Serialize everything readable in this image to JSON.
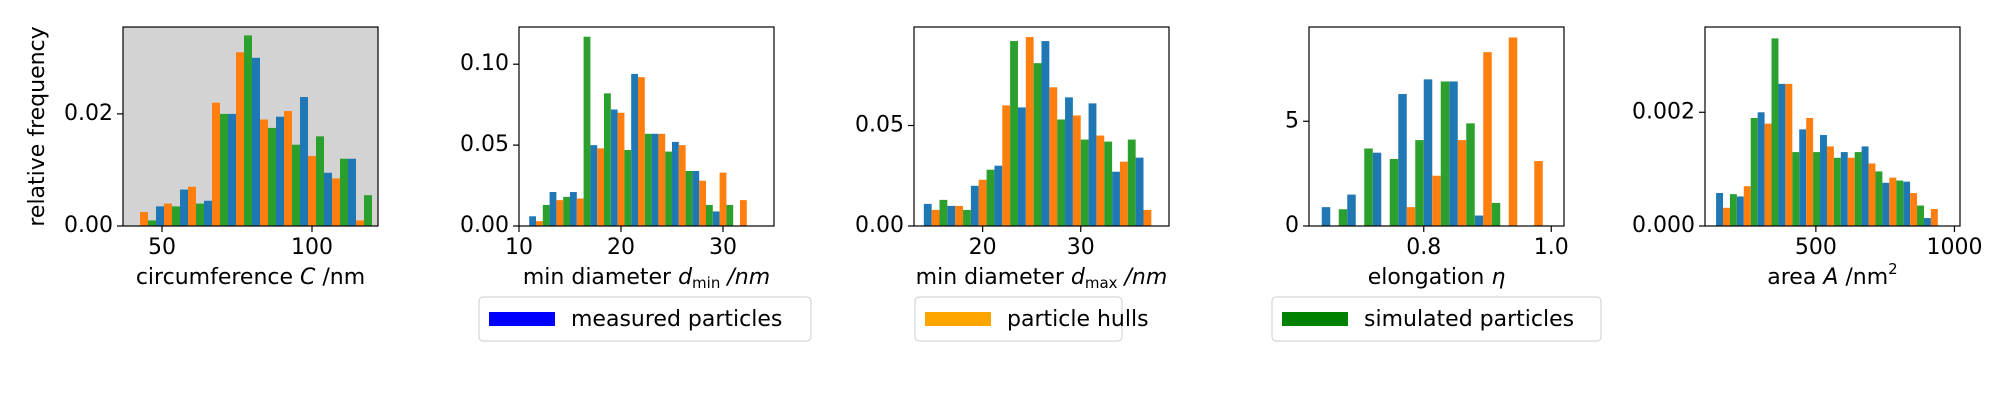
{
  "chart_data": [
    {
      "type": "histogram",
      "background": "#d3d3d3",
      "ylabel": "relative frequency",
      "xlabel": [
        {
          "text": "circumference "
        },
        {
          "text": "C",
          "style": "italic"
        },
        {
          "text": " /nm"
        }
      ],
      "bins": [
        40,
        48,
        56,
        64,
        72,
        80,
        88,
        96,
        104,
        112,
        120
      ],
      "series": [
        {
          "color": "#1f77b4",
          "values": [
            0,
            0.0035,
            0.0065,
            0.0045,
            0.02,
            0.03,
            0.0195,
            0.023,
            0.0095,
            0.012
          ]
        },
        {
          "color": "#ff7f0e",
          "values": [
            0.0025,
            0.004,
            0.007,
            0.022,
            0.031,
            0.019,
            0.0205,
            0.0125,
            0.0085,
            0.001
          ]
        },
        {
          "color": "#2ca02c",
          "values": [
            0.001,
            0.0035,
            0.004,
            0.02,
            0.034,
            0.0175,
            0.0145,
            0.016,
            0.012,
            0.0055
          ]
        }
      ],
      "xlim": [
        37,
        122
      ],
      "xticks": [
        50,
        100
      ],
      "ylim": [
        0,
        0.0355
      ],
      "yticks": [
        {
          "value": 0,
          "label": "0.00"
        },
        {
          "value": 0.02,
          "label": "0.02"
        }
      ]
    },
    {
      "type": "histogram",
      "background": "#ffffff",
      "xlabel": [
        {
          "text": "min diameter "
        },
        {
          "text": "d",
          "style": "italic"
        },
        {
          "text": "min",
          "style": "sub"
        },
        {
          "text": " /nm",
          "style": "italic"
        }
      ],
      "bins": [
        11,
        13,
        15,
        17,
        19,
        21,
        23,
        25,
        27,
        29,
        31,
        33
      ],
      "series": [
        {
          "color": "#1f77b4",
          "values": [
            0.006,
            0.021,
            0.021,
            0.05,
            0.072,
            0.094,
            0.057,
            0.052,
            0.034,
            0.009,
            0
          ]
        },
        {
          "color": "#ff7f0e",
          "values": [
            0.003,
            0.016,
            0.017,
            0.048,
            0.07,
            0.092,
            0.057,
            0.05,
            0.028,
            0.033,
            0.016
          ]
        },
        {
          "color": "#2ca02c",
          "values": [
            0.013,
            0.018,
            0.117,
            0.082,
            0.047,
            0.057,
            0.046,
            0.034,
            0.013,
            0.013,
            0
          ]
        }
      ],
      "xlim": [
        10,
        35
      ],
      "xticks": [
        10,
        20,
        30
      ],
      "ylim": [
        0,
        0.123
      ],
      "yticks": [
        {
          "value": 0,
          "label": "0.00"
        },
        {
          "value": 0.05,
          "label": "0.05"
        },
        {
          "value": 0.1,
          "label": "0.10"
        }
      ]
    },
    {
      "type": "histogram",
      "background": "#ffffff",
      "xlabel": [
        {
          "text": "min diameter "
        },
        {
          "text": "d",
          "style": "italic"
        },
        {
          "text": "max",
          "style": "sub"
        },
        {
          "text": " /nm",
          "style": "italic"
        }
      ],
      "bins": [
        14,
        16.4,
        18.8,
        21.2,
        23.6,
        26,
        28.4,
        30.8,
        33.2,
        35.6,
        38
      ],
      "series": [
        {
          "color": "#1f77b4",
          "values": [
            0.011,
            0.01,
            0.02,
            0.03,
            0.059,
            0.092,
            0.064,
            0.061,
            0.027,
            0.034
          ]
        },
        {
          "color": "#ff7f0e",
          "values": [
            0.008,
            0.01,
            0.023,
            0.06,
            0.094,
            0.069,
            0.055,
            0.045,
            0.032,
            0.008
          ]
        },
        {
          "color": "#2ca02c",
          "values": [
            0.013,
            0.008,
            0.028,
            0.092,
            0.081,
            0.053,
            0.043,
            0.042,
            0.043,
            0
          ]
        }
      ],
      "xlim": [
        13,
        39
      ],
      "xticks": [
        20,
        30
      ],
      "ylim": [
        0,
        0.099
      ],
      "yticks": [
        {
          "value": 0,
          "label": "0.00"
        },
        {
          "value": 0.05,
          "label": "0.05"
        }
      ]
    },
    {
      "type": "histogram",
      "background": "#ffffff",
      "xlabel": [
        {
          "text": "elongation "
        },
        {
          "text": "η",
          "style": "italic"
        }
      ],
      "bins": [
        0.64,
        0.68,
        0.72,
        0.76,
        0.8,
        0.84,
        0.88,
        0.92,
        0.96,
        1.0
      ],
      "series": [
        {
          "color": "#1f77b4",
          "values": [
            0.9,
            1.5,
            3.5,
            6.3,
            7.0,
            6.9,
            0.5,
            0,
            0
          ]
        },
        {
          "color": "#ff7f0e",
          "values": [
            0,
            0,
            0,
            0.9,
            2.4,
            4.1,
            8.3,
            9.0,
            3.1
          ]
        },
        {
          "color": "#2ca02c",
          "values": [
            0.8,
            3.7,
            3.2,
            4.1,
            6.9,
            4.9,
            1.1,
            0,
            0
          ]
        }
      ],
      "xlim": [
        0.62,
        1.02
      ],
      "xticks": [
        0.8,
        {
          "value": 1.0,
          "label": "1.0"
        }
      ],
      "ylim": [
        0,
        9.5
      ],
      "yticks": [
        0,
        5
      ]
    },
    {
      "type": "histogram",
      "background": "#ffffff",
      "xlabel": [
        {
          "text": "area "
        },
        {
          "text": "A",
          "style": "italic"
        },
        {
          "text": " /nm"
        },
        {
          "text": "2",
          "style": "sup"
        }
      ],
      "bins": [
        140,
        215,
        290,
        365,
        440,
        515,
        590,
        665,
        740,
        815,
        890,
        965
      ],
      "series": [
        {
          "color": "#1f77b4",
          "values": [
            0.00058,
            0.00052,
            0.002,
            0.0025,
            0.0017,
            0.0016,
            0.0013,
            0.0014,
            0.00076,
            0.00078,
            0.00014
          ]
        },
        {
          "color": "#ff7f0e",
          "values": [
            0.00032,
            0.0007,
            0.0018,
            0.0025,
            0.0019,
            0.0014,
            0.0012,
            0.0011,
            0.00085,
            0.00058,
            0.0003
          ]
        },
        {
          "color": "#2ca02c",
          "values": [
            0.00056,
            0.0019,
            0.0033,
            0.0013,
            0.0013,
            0.0012,
            0.0013,
            0.00096,
            0.0008,
            0.00036,
            0
          ]
        }
      ],
      "xlim": [
        100,
        1020
      ],
      "xticks": [
        500,
        1000
      ],
      "ylim": [
        0,
        0.0035
      ],
      "yticks": [
        {
          "value": 0,
          "label": "0.000"
        },
        {
          "value": 0.002,
          "label": "0.002"
        }
      ]
    }
  ],
  "legend": [
    {
      "name": "measured particles",
      "color": "#0000ff"
    },
    {
      "name": "particle hulls",
      "color": "#ffa500"
    },
    {
      "name": "simulated particles",
      "color": "#008000"
    }
  ]
}
